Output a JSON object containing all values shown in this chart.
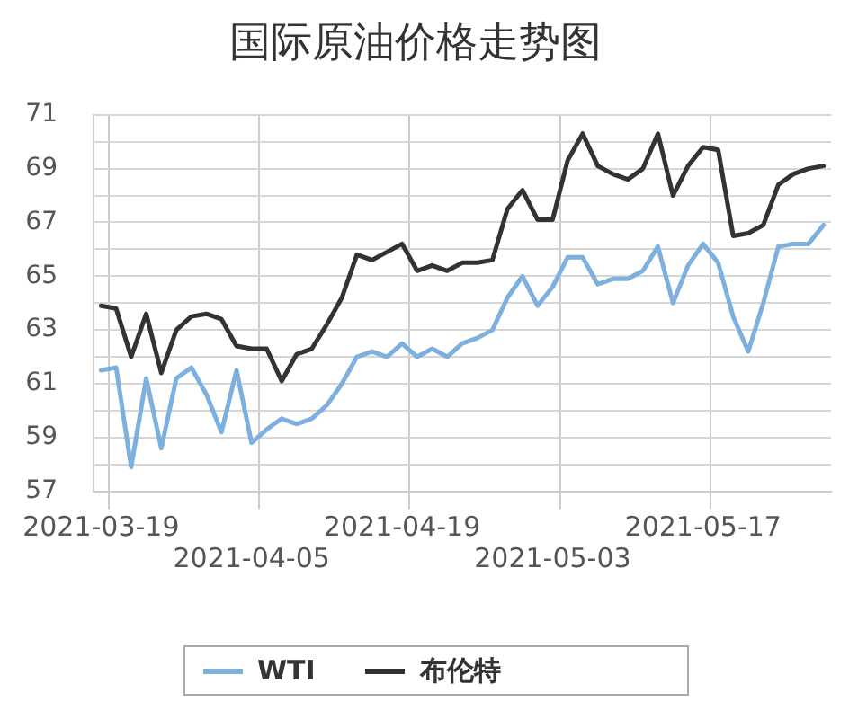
{
  "chart_data": {
    "type": "line",
    "title": "国际原油价格走势图",
    "categories": [
      "2021-03-19",
      null,
      null,
      null,
      null,
      null,
      null,
      null,
      null,
      null,
      "2021-04-05",
      null,
      null,
      null,
      null,
      null,
      null,
      null,
      null,
      null,
      "2021-04-19",
      null,
      null,
      null,
      null,
      null,
      null,
      null,
      null,
      null,
      "2021-05-03",
      null,
      null,
      null,
      null,
      null,
      null,
      null,
      null,
      null,
      "2021-05-17",
      null,
      null,
      null,
      null,
      null,
      null,
      null,
      null
    ],
    "series": [
      {
        "name": "WTI",
        "color": "#7eb0de",
        "values": [
          61.5,
          61.6,
          57.9,
          61.2,
          58.6,
          61.2,
          61.6,
          60.6,
          59.2,
          61.5,
          58.8,
          59.3,
          59.7,
          59.5,
          59.7,
          60.2,
          61.0,
          62.0,
          62.2,
          62.0,
          62.5,
          62.0,
          62.3,
          62.0,
          62.5,
          62.7,
          63.0,
          64.2,
          65.0,
          63.9,
          64.6,
          65.7,
          65.7,
          64.7,
          64.9,
          64.9,
          65.2,
          66.1,
          64.0,
          65.4,
          66.2,
          65.5,
          63.5,
          62.2,
          64.0,
          66.1,
          66.2,
          66.2,
          66.9
        ]
      },
      {
        "name": "布伦特",
        "color": "#333333",
        "values": [
          63.9,
          63.8,
          62.0,
          63.6,
          61.4,
          63.0,
          63.5,
          63.6,
          63.4,
          62.4,
          62.3,
          62.3,
          61.1,
          62.1,
          62.3,
          63.2,
          64.2,
          65.8,
          65.6,
          65.9,
          66.2,
          65.2,
          65.4,
          65.2,
          65.5,
          65.5,
          65.6,
          67.5,
          68.2,
          67.1,
          67.1,
          69.3,
          70.3,
          69.1,
          68.8,
          68.6,
          69.0,
          70.3,
          68.0,
          69.1,
          69.8,
          69.7,
          66.5,
          66.6,
          66.9,
          68.4,
          68.8,
          69.0,
          69.1
        ]
      }
    ],
    "ylim": [
      57,
      71
    ],
    "yticks": [
      57,
      {
        "value": 58,
        "label": null
      },
      59,
      {
        "value": 60,
        "label": null
      },
      61,
      {
        "value": 62,
        "label": null
      },
      63,
      {
        "value": 64,
        "label": null
      },
      65,
      {
        "value": 66,
        "label": null
      },
      67,
      {
        "value": 68,
        "label": null
      },
      69,
      {
        "value": 70,
        "label": null
      },
      71
    ],
    "grid": true,
    "legend": "bottom",
    "marker": "none"
  }
}
